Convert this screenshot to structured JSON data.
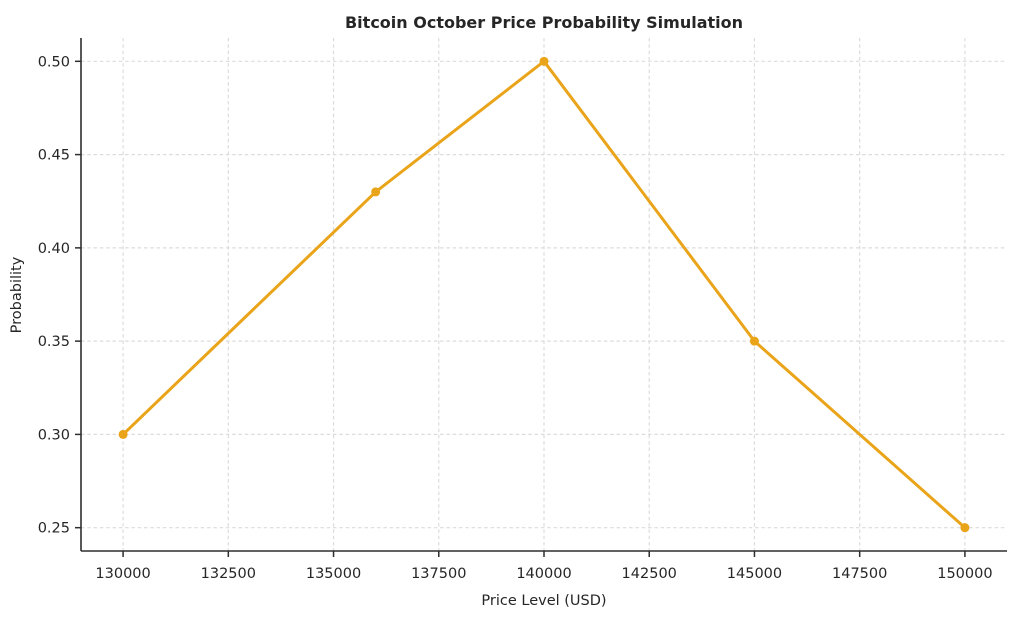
{
  "chart_data": {
    "type": "line",
    "title": "Bitcoin October Price Probability Simulation",
    "xlabel": "Price Level (USD)",
    "ylabel": "Probability",
    "series": [
      {
        "name": "probability",
        "x": [
          130000,
          136000,
          140000,
          145000,
          150000
        ],
        "y": [
          0.3,
          0.43,
          0.5,
          0.35,
          0.25
        ]
      }
    ],
    "xlim": [
      129000,
      151000
    ],
    "ylim": [
      0.2375,
      0.5125
    ],
    "xticks": [
      130000,
      132500,
      135000,
      137500,
      140000,
      142500,
      145000,
      147500,
      150000
    ],
    "xtick_labels": [
      "130000",
      "132500",
      "135000",
      "137500",
      "140000",
      "142500",
      "145000",
      "147500",
      "150000"
    ],
    "yticks": [
      0.25,
      0.3,
      0.35,
      0.4,
      0.45,
      0.5
    ],
    "ytick_labels": [
      "0.25",
      "0.30",
      "0.35",
      "0.40",
      "0.45",
      "0.50"
    ],
    "grid": true,
    "grid_style": "dashed",
    "legend_position": "none",
    "colors": {
      "line": "#E9A41A",
      "marker": "#E9A41A",
      "grid": "#DCDCDC",
      "spine": "#2E2E2E",
      "tick": "#2E2E2E",
      "text": "#262626",
      "background": "#FFFFFF"
    },
    "line_width": 3,
    "marker_radius": 4.5
  }
}
